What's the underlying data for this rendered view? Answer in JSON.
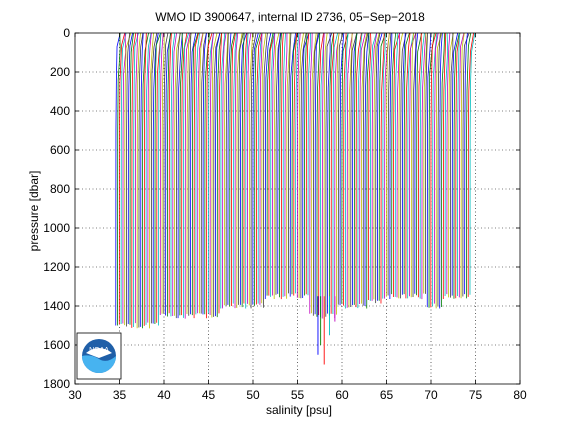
{
  "chart_data": {
    "type": "line",
    "title": "WMO ID 3900647, internal ID 2736, 05−Sep−2018",
    "xlabel": "salinity [psu]",
    "ylabel": "pressure [dbar]",
    "xlim": [
      30,
      80
    ],
    "ylim": [
      0,
      1800
    ],
    "y_reversed": true,
    "x_ticks": [
      30,
      35,
      40,
      45,
      50,
      55,
      60,
      65,
      70,
      75,
      80
    ],
    "y_ticks": [
      0,
      200,
      400,
      600,
      800,
      1000,
      1200,
      1400,
      1600,
      1800
    ],
    "grid": true,
    "description_of_series": "waterfall of many salinity profiles, each offset in salinity; surface values near 35-75, deep values near 34.6-74.4",
    "offset_start": 34.6,
    "offset_step": 0.2,
    "profile_count": 200,
    "max_pressures_sample": [
      1500,
      1500,
      1500,
      1450,
      1450,
      1450,
      1450,
      1400,
      1400,
      1400,
      1350,
      1350,
      1350,
      1450,
      1450,
      1400,
      1400,
      1380,
      1350,
      1350,
      1350,
      1400,
      1350,
      1350
    ],
    "deep_spikes": [
      {
        "salinity": 57.3,
        "pressure": 1650
      },
      {
        "salinity": 57.6,
        "pressure": 1600
      },
      {
        "salinity": 58.0,
        "pressure": 1700
      },
      {
        "salinity": 58.6,
        "pressure": 1550
      },
      {
        "salinity": 59.2,
        "pressure": 1480
      }
    ],
    "colors": [
      "#0000ff",
      "#008000",
      "#ff0000",
      "#00bfbf",
      "#bf00bf",
      "#bfbf00",
      "#404040"
    ]
  },
  "logo": {
    "name": "noaa-logo",
    "text": "NOAA"
  }
}
